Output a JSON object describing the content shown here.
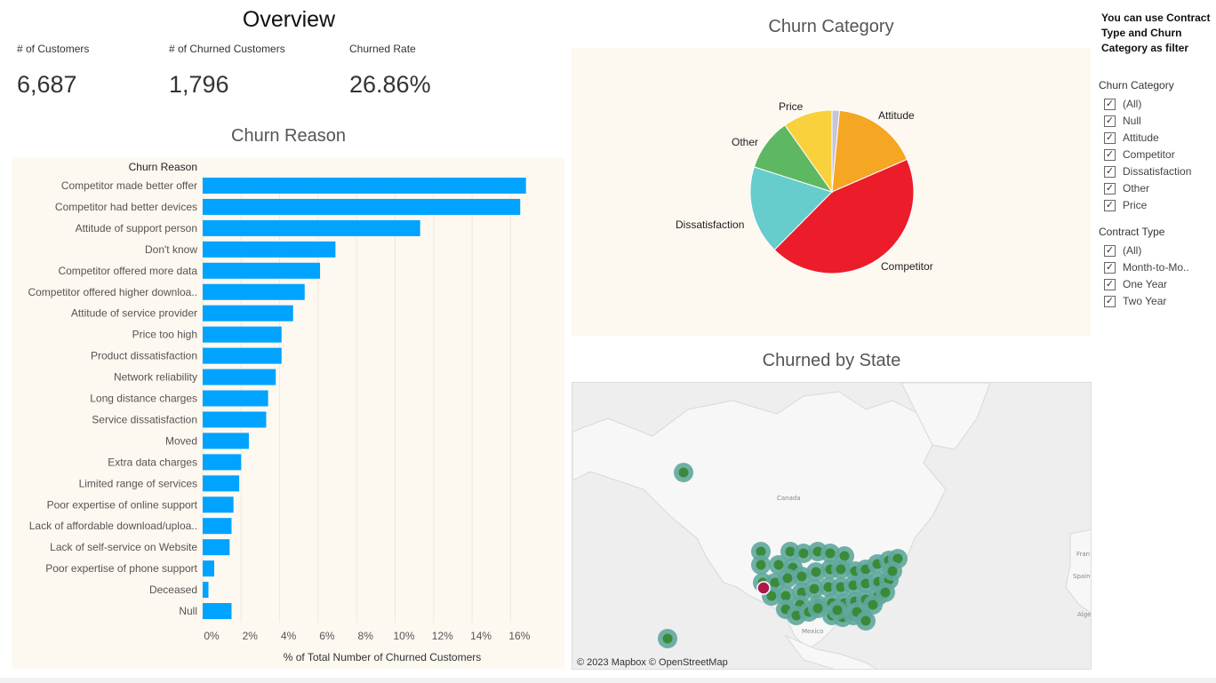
{
  "overview": {
    "title": "Overview",
    "kpis": [
      {
        "label": "# of Customers",
        "value": "6,687"
      },
      {
        "label": "# of Churned Customers",
        "value": "1,796"
      },
      {
        "label": "Churned Rate",
        "value": "26.86%"
      }
    ]
  },
  "reason": {
    "title": "Churn Reason",
    "header": "Churn Reason",
    "xlabel": "% of Total Number of Churned Customers",
    "color": "#00a3ff"
  },
  "category": {
    "title": "Churn Category"
  },
  "map": {
    "title": "Churned by State",
    "attribution": "© 2023 Mapbox © OpenStreetMap",
    "labels": {
      "canada": "Canada",
      "mexico": "Mexico",
      "spain": "Spain",
      "france": "Fran",
      "algeria": "Alge"
    }
  },
  "filters": {
    "note": "You can use Contract Type and Churn Category as filter",
    "churn_category": {
      "title": "Churn Category",
      "items": [
        "(All)",
        "Null",
        "Attitude",
        "Competitor",
        "Dissatisfaction",
        "Other",
        "Price"
      ]
    },
    "contract_type": {
      "title": "Contract Type",
      "items": [
        "(All)",
        "Month-to-Mo..",
        "One Year",
        "Two Year"
      ]
    }
  },
  "chart_data": [
    {
      "type": "bar",
      "orientation": "horizontal",
      "title": "Churn Reason",
      "xlabel": "% of Total Number of Churned Customers",
      "ylabel": "Churn Reason",
      "categories": [
        "Competitor made better offer",
        "Competitor had better devices",
        "Attitude of support person",
        "Don't know",
        "Competitor offered more data",
        "Competitor offered higher downloa..",
        "Attitude of service provider",
        "Price too high",
        "Product dissatisfaction",
        "Network reliability",
        "Long distance charges",
        "Service dissatisfaction",
        "Moved",
        "Extra data charges",
        "Limited range of services",
        "Poor expertise of online support",
        "Lack of affordable download/uploa..",
        "Lack of self-service on Website",
        "Poor expertise of phone support",
        "Deceased",
        "Null"
      ],
      "values": [
        16.8,
        16.5,
        11.3,
        6.9,
        6.1,
        5.3,
        4.7,
        4.1,
        4.1,
        3.8,
        3.4,
        3.3,
        2.4,
        2.0,
        1.9,
        1.6,
        1.5,
        1.4,
        0.6,
        0.3,
        1.5
      ],
      "xlim": [
        0,
        17.5
      ],
      "xticks": [
        "0%",
        "2%",
        "4%",
        "6%",
        "8%",
        "10%",
        "12%",
        "14%",
        "16%"
      ],
      "grid": true
    },
    {
      "type": "pie",
      "title": "Churn Category",
      "labels": [
        "Null",
        "Attitude",
        "Competitor",
        "Dissatisfaction",
        "Other",
        "Price"
      ],
      "values": [
        1.5,
        17.4,
        44.9,
        17.9,
        10.5,
        10.0
      ],
      "colors": [
        "#c4c4dc",
        "#f5a623",
        "#ec1c2a",
        "#66cdcc",
        "#5eb862",
        "#f9d13c"
      ],
      "show_labels": [
        "Attitude",
        "Competitor",
        "Dissatisfaction",
        "Other",
        "Price"
      ]
    }
  ]
}
